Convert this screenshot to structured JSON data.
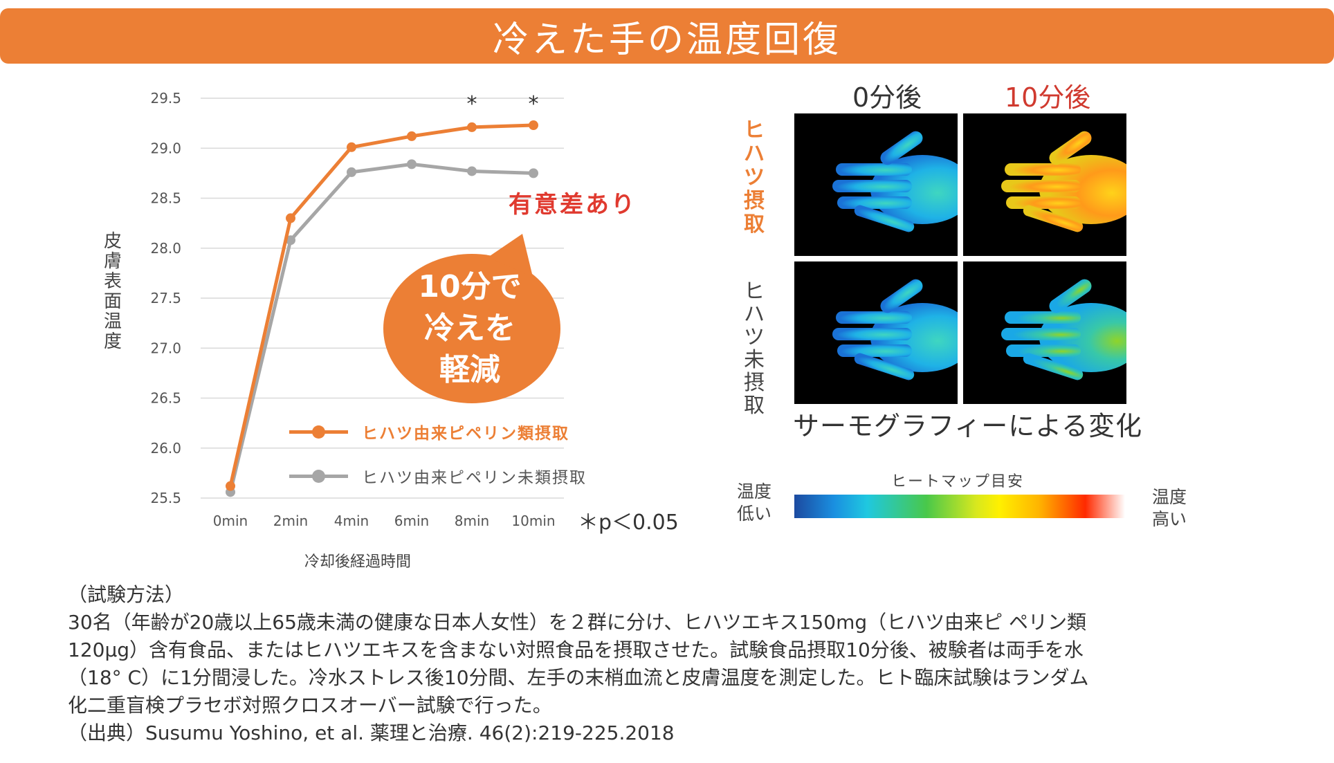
{
  "title": "冷えた手の温度回復",
  "chart_data": {
    "type": "line",
    "categories": [
      "0min",
      "2min",
      "4min",
      "6min",
      "8min",
      "10min"
    ],
    "yticks": [
      "29.5",
      "29.0",
      "28.5",
      "28.0",
      "27.5",
      "27.0",
      "26.5",
      "26.0",
      "25.5"
    ],
    "ylim": [
      25.5,
      29.5
    ],
    "ylabel": "皮膚表面温度",
    "xlabel": "冷却後経過時間",
    "grid": true,
    "series": [
      {
        "name": "ヒハツ由来ピペリン類摂取",
        "color": "#ec7f35",
        "values": [
          25.62,
          28.3,
          29.01,
          29.12,
          29.21,
          29.23
        ]
      },
      {
        "name": "ヒハツ由来ピペリン未類摂取",
        "color": "#a6a6a6",
        "values": [
          25.56,
          28.08,
          28.76,
          28.84,
          28.77,
          28.75
        ]
      }
    ],
    "significance_marks": [
      {
        "category": "8min",
        "text": "*"
      },
      {
        "category": "10min",
        "text": "*"
      }
    ],
    "annotation": "有意差あり",
    "callout": [
      "10分で",
      "冷えを",
      "軽減"
    ],
    "p_note": "＊p＜0.05"
  },
  "thermography": {
    "col_0": "0分後",
    "col_10": "10分後",
    "row_taken": "ヒハツ摂取",
    "row_not_taken": "ヒハツ未摂取",
    "caption": "サーモグラフィーによる変化",
    "colors": {
      "col_10_head": "#d03a2f",
      "row_taken_head": "#ec7f35"
    }
  },
  "heatmap": {
    "title": "ヒートマップ目安",
    "low": [
      "温度",
      "低い"
    ],
    "high": [
      "温度",
      "高い"
    ]
  },
  "method": {
    "lines": [
      "（試験方法）",
      "30名（年齢が20歳以上65歳未満の健康な日本人女性）を２群に分け、ヒハツエキス150mg（ヒハツ由来ピ ペリン類",
      "120μg）含有食品、またはヒハツエキスを含まない対照食品を摂取させた。試験食品摂取10分後、被験者は両手を水",
      "（18° C）に1分間浸した。冷水ストレス後10分間、左手の末梢血流と皮膚温度を測定した。ヒト臨床試験はランダム",
      "化二重盲検プラセボ対照クロスオーバー試験で行った。",
      "（出典）Susumu Yoshino,  et al. 薬理と治療. 46(2):219-225.2018"
    ]
  }
}
